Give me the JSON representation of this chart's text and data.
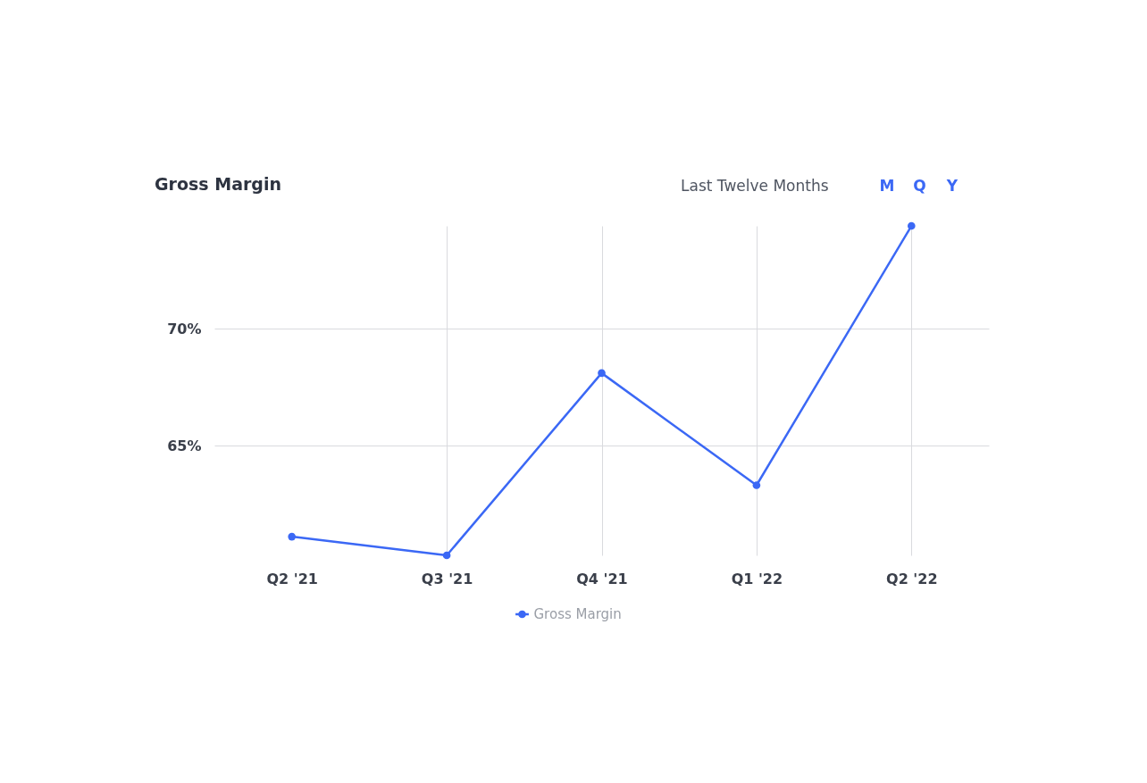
{
  "chart_data": {
    "type": "line",
    "title": "Gross Margin",
    "annotations": [
      "Last Twelve Months",
      "M",
      "Q",
      "Y"
    ],
    "categories": [
      "Q2 '21",
      "Q3 '21",
      "Q4 '21",
      "Q1 '22",
      "Q2 '22"
    ],
    "series": [
      {
        "name": "Gross Margin",
        "color": "#3b68f5",
        "values": [
          61.1,
          60.3,
          68.1,
          63.3,
          74.4
        ]
      }
    ],
    "ylim": [
      60.3,
      74.4
    ],
    "yticks": [
      {
        "value": 65,
        "label": "65%"
      },
      {
        "value": 70,
        "label": "70%"
      }
    ],
    "grid": true,
    "legend": "bottom",
    "marker": "circle",
    "line_style": "solid"
  }
}
